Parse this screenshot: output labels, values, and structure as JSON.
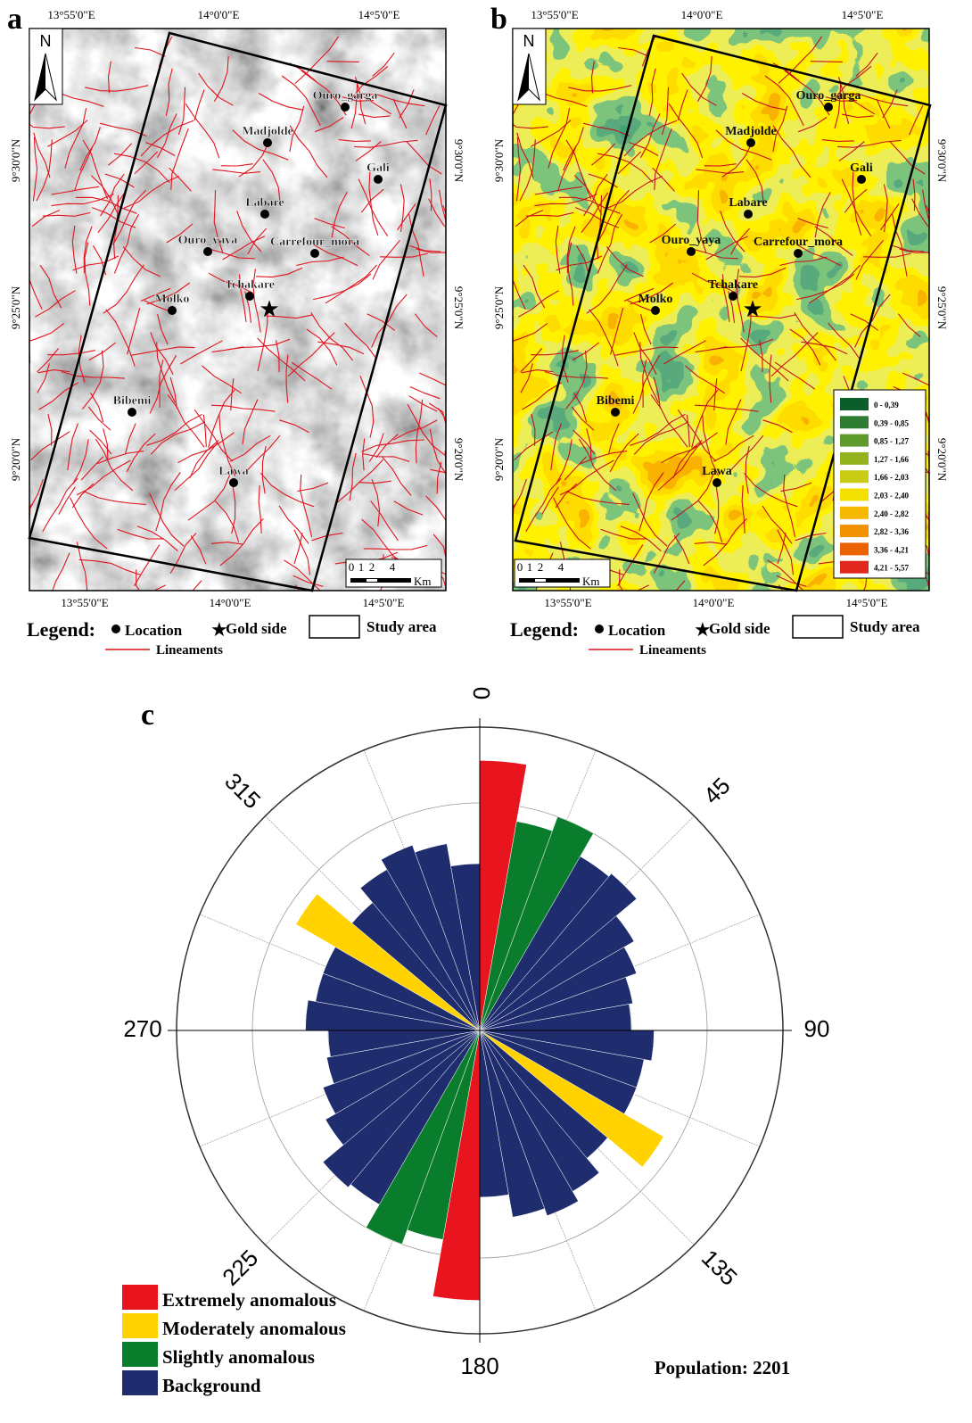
{
  "panels": [
    {
      "letter": "a",
      "north": "N",
      "lon_ticks": [
        "13°55'0\"E",
        "14°0'0\"E",
        "14°5'0\"E"
      ],
      "lat_ticks": [
        "9°30'0\"N",
        "9°25'0\"N",
        "9°20'0\"N"
      ],
      "places": [
        "Ouro_garga",
        "Madjolde",
        "Gali",
        "Labare",
        "Ouro_yaya",
        "Carrefour_mora",
        "Tchakare",
        "Molko",
        "Bibemi",
        "Lawa"
      ],
      "scale": {
        "labels": [
          "0",
          "1",
          "2",
          "4"
        ],
        "unit": "Km"
      },
      "legend": {
        "title": "Legend:",
        "location": "Location",
        "gold": "Gold side",
        "study": "Study area",
        "lineaments": "Lineaments"
      }
    },
    {
      "letter": "b",
      "north": "N",
      "lon_ticks": [
        "13°55'0\"E",
        "14°0'0\"E",
        "14°5'0\"E"
      ],
      "lat_ticks": [
        "9°30'0\"N",
        "9°25'0\"N",
        "9°20'0\"N"
      ],
      "places": [
        "Ouro_garga",
        "Madjolde",
        "Gali",
        "Labare",
        "Ouro_yaya",
        "Carrefour_mora",
        "Tchakare",
        "Molko",
        "Bibemi",
        "Lawa"
      ],
      "scale": {
        "labels": [
          "0",
          "1",
          "2",
          "4"
        ],
        "unit": "Km"
      },
      "legend": {
        "title": "Legend:",
        "location": "Location",
        "gold": "Gold side",
        "study": "Study area",
        "lineaments": "Lineaments"
      },
      "classes": [
        {
          "label": "0 - 0,39",
          "color": "#0b5e2a"
        },
        {
          "label": "0,39 - 0,85",
          "color": "#2f7d32"
        },
        {
          "label": "0,85 - 1,27",
          "color": "#5e9a2c"
        },
        {
          "label": "1,27 - 1,66",
          "color": "#94b21e"
        },
        {
          "label": "1,66 - 2,03",
          "color": "#c8cc14"
        },
        {
          "label": "2,03 - 2,40",
          "color": "#f4e000"
        },
        {
          "label": "2,40 - 2,82",
          "color": "#f7b800"
        },
        {
          "label": "2,82 - 3,36",
          "color": "#f39200"
        },
        {
          "label": "3,36 - 4,21",
          "color": "#ea6300"
        },
        {
          "label": "4,21 - 5,57",
          "color": "#e0281e"
        }
      ]
    }
  ],
  "chart_data": {
    "type": "rose",
    "panel_label": "c",
    "annotation": "Population: 2201",
    "bin_width": 10,
    "rlim": [
      0,
      4
    ],
    "rticks": [
      1,
      2,
      3,
      4
    ],
    "thetaticks": [
      0,
      45,
      90,
      135,
      180,
      225,
      270,
      315
    ],
    "series": [
      {
        "name": "Extremely anomalous",
        "color": "#e8141e",
        "values": [
          3.56,
          null,
          null,
          null,
          null,
          null,
          null,
          null,
          null,
          null,
          null,
          null,
          null,
          null,
          null,
          null,
          null,
          null,
          3.56,
          null,
          null,
          null,
          null,
          null,
          null,
          null,
          null,
          null,
          null,
          null,
          null,
          null,
          null,
          null,
          null,
          null
        ]
      },
      {
        "name": "Moderately anomalous",
        "color": "#ffd200",
        "values": [
          null,
          null,
          null,
          null,
          null,
          null,
          null,
          null,
          null,
          null,
          null,
          null,
          2.8,
          null,
          null,
          null,
          null,
          null,
          null,
          null,
          null,
          null,
          null,
          null,
          null,
          null,
          null,
          null,
          null,
          null,
          2.8,
          null,
          null,
          null,
          null,
          null
        ]
      },
      {
        "name": "Slightly anomalous",
        "color": "#0a7d2c",
        "values": [
          null,
          2.8,
          3.0,
          null,
          null,
          null,
          null,
          null,
          null,
          null,
          null,
          null,
          null,
          null,
          null,
          null,
          null,
          null,
          null,
          2.8,
          3.0,
          null,
          null,
          null,
          null,
          null,
          null,
          null,
          null,
          null,
          null,
          null,
          null,
          null,
          null,
          null
        ]
      },
      {
        "name": "Background",
        "color": "#1f2d6e",
        "values": [
          null,
          null,
          null,
          2.65,
          2.7,
          2.35,
          2.2,
          2.05,
          2.0,
          2.3,
          2.2,
          2.2,
          null,
          2.2,
          2.45,
          2.6,
          2.5,
          2.2,
          null,
          null,
          null,
          2.65,
          2.7,
          2.35,
          2.2,
          2.05,
          2.0,
          2.3,
          2.2,
          2.2,
          null,
          2.2,
          2.45,
          2.6,
          2.5,
          2.2
        ]
      }
    ]
  }
}
